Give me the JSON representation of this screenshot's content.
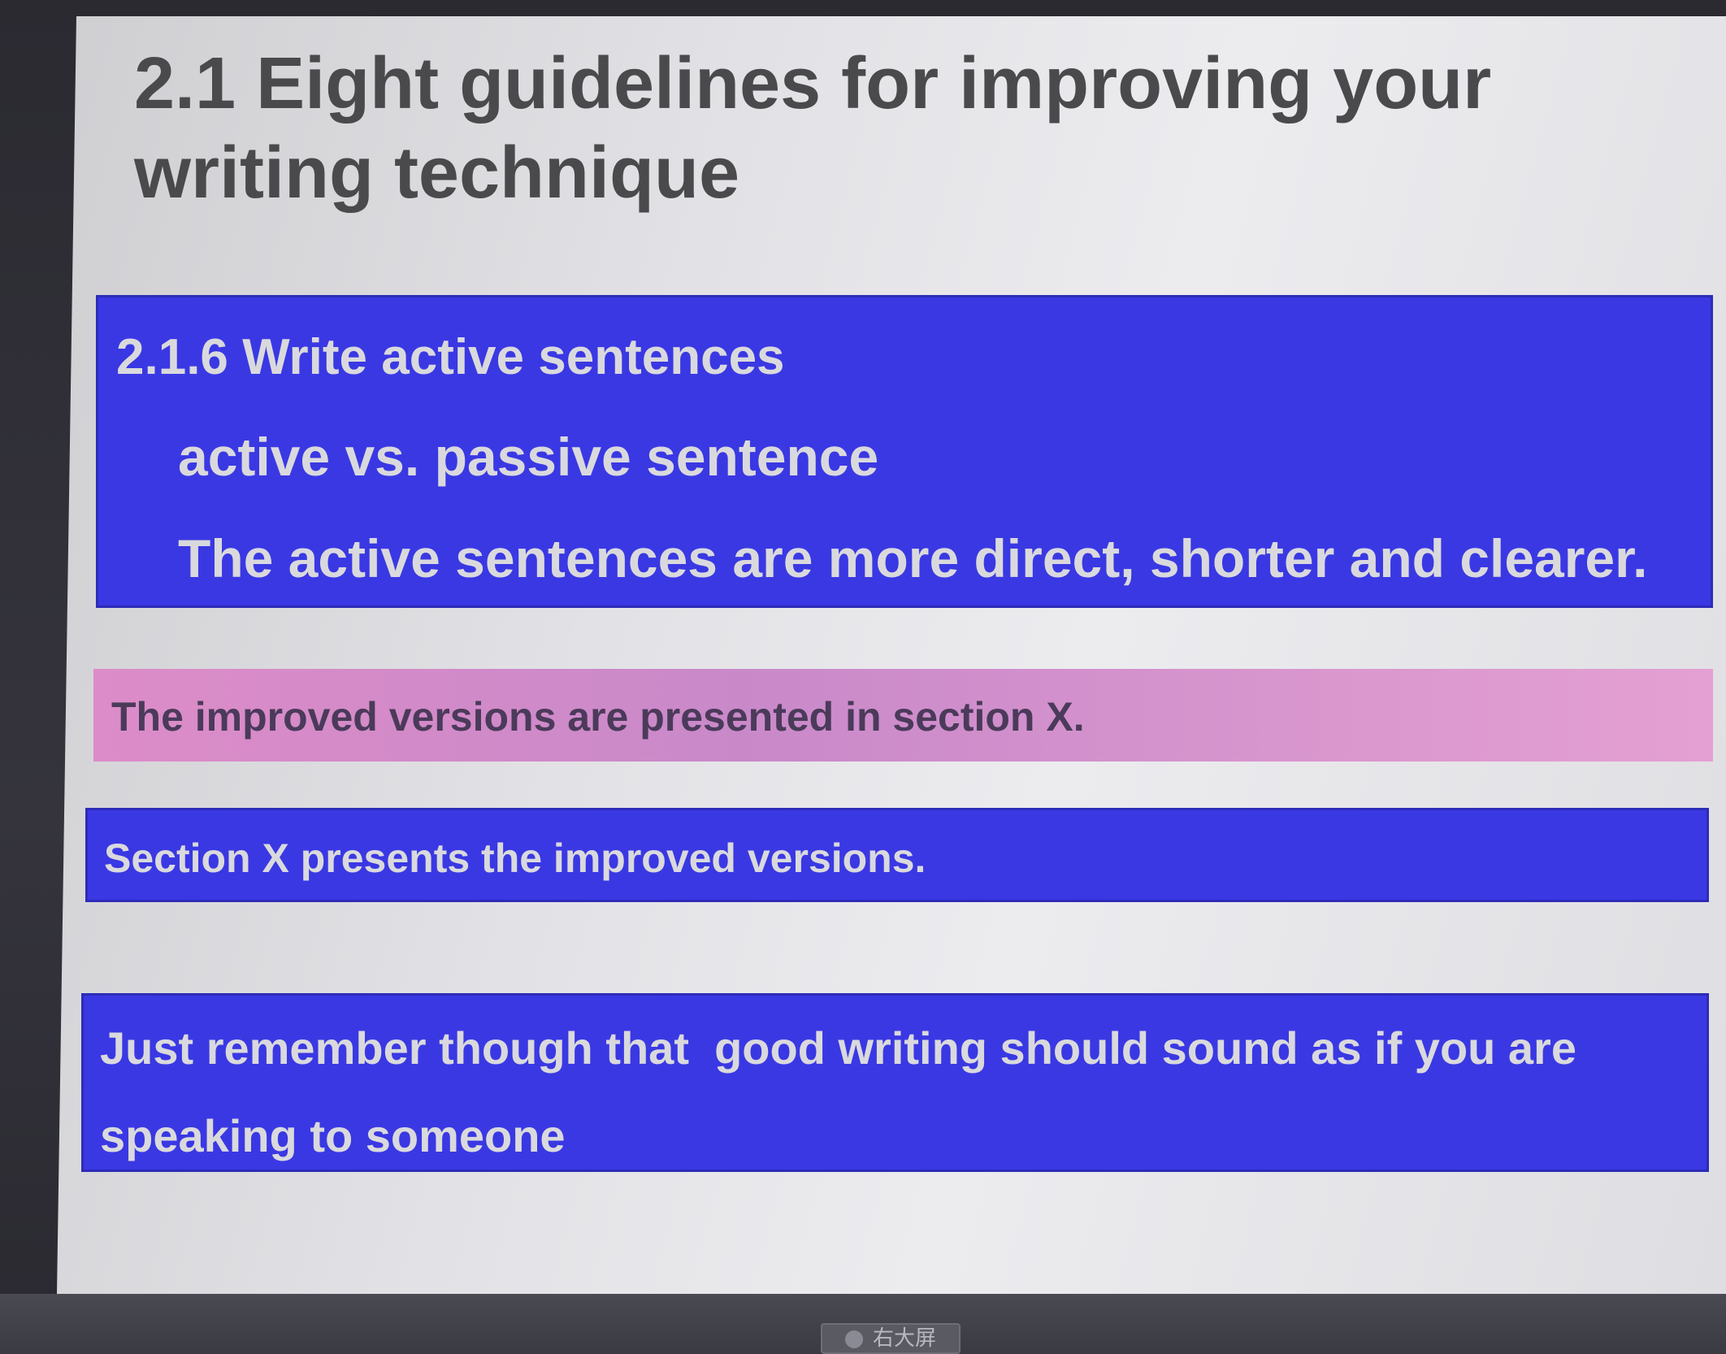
{
  "slide": {
    "title": "2.1 Eight guidelines for improving your writing technique",
    "active_box": {
      "heading": "2.1.6 Write active sentences",
      "subheading": "active vs. passive sentence",
      "statement": "The active sentences are more direct, shorter and clearer."
    },
    "passive_example": "The improved versions are presented in section X.",
    "active_example": "Section X presents the improved versions.",
    "remember_box": {
      "line1": "Just remember though that  good writing should sound as if you are",
      "line2": "speaking to someone"
    }
  },
  "bezel": {
    "badge_label": "右大屏"
  },
  "colors": {
    "blue_box": "#3a38e3",
    "pink_box": "#dc8cc8",
    "title_text": "#4a4a4c",
    "box_text": "#d9d9dd"
  }
}
